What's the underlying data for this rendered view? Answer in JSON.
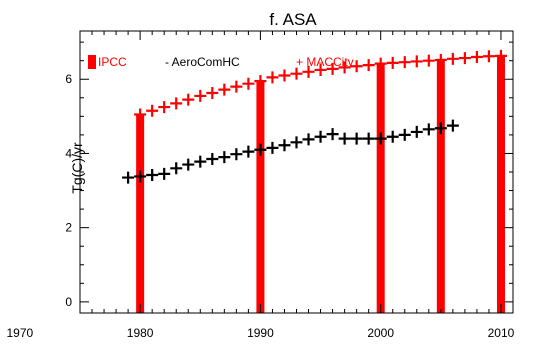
{
  "chart_data": {
    "type": "bar",
    "title": "f. ASA",
    "xlabel": "",
    "ylabel": "Tg(C)/yr",
    "xlim": [
      1975,
      2011
    ],
    "ylim": [
      -0.3,
      7.3
    ],
    "xticks": [
      1970,
      1980,
      1990,
      2000,
      2010
    ],
    "xtick_labels": [
      "1970",
      "1980",
      "1990",
      "2000",
      "2010"
    ],
    "yticks": [
      0,
      2,
      4,
      6
    ],
    "ytick_labels": [
      "0",
      "2",
      "4",
      "6"
    ],
    "legend": [
      {
        "label": "IPCC",
        "symbol": "bar",
        "color": "#ff0000"
      },
      {
        "label": "- AeroComHC",
        "symbol": "none",
        "color": "#000000"
      },
      {
        "label": "+ MACCity",
        "symbol": "none",
        "color": "#ff0000"
      }
    ],
    "legend_position": "top-left",
    "bars": {
      "name": "IPCC",
      "color": "#ff0000",
      "x": [
        1980,
        1990,
        2000,
        2005,
        2010
      ],
      "values": [
        5.05,
        5.95,
        6.45,
        6.55,
        6.65
      ]
    },
    "series": [
      {
        "name": "MACCity",
        "marker": "+",
        "color": "#ff0000",
        "x": [
          1980,
          1981,
          1982,
          1983,
          1984,
          1985,
          1986,
          1987,
          1988,
          1989,
          1990,
          1991,
          1992,
          1993,
          1994,
          1995,
          1996,
          1997,
          1998,
          1999,
          2000,
          2001,
          2002,
          2003,
          2004,
          2005,
          2006,
          2007,
          2008,
          2009,
          2010
        ],
        "values": [
          5.05,
          5.15,
          5.25,
          5.35,
          5.45,
          5.55,
          5.63,
          5.72,
          5.8,
          5.88,
          5.95,
          6.05,
          6.1,
          6.15,
          6.2,
          6.25,
          6.28,
          6.32,
          6.35,
          6.38,
          6.42,
          6.44,
          6.46,
          6.48,
          6.5,
          6.52,
          6.55,
          6.57,
          6.6,
          6.62,
          6.63
        ]
      },
      {
        "name": "AeroComHC",
        "marker": "+",
        "color": "#000000",
        "x": [
          1979,
          1980,
          1981,
          1982,
          1983,
          1984,
          1985,
          1986,
          1987,
          1988,
          1989,
          1990,
          1991,
          1992,
          1993,
          1994,
          1995,
          1996,
          1997,
          1998,
          1999,
          2000,
          2001,
          2002,
          2003,
          2004,
          2005,
          2006
        ],
        "values": [
          3.35,
          3.38,
          3.42,
          3.45,
          3.6,
          3.7,
          3.78,
          3.85,
          3.9,
          3.98,
          4.05,
          4.1,
          4.15,
          4.22,
          4.3,
          4.38,
          4.45,
          4.52,
          4.4,
          4.4,
          4.4,
          4.4,
          4.45,
          4.5,
          4.58,
          4.65,
          4.68,
          4.75
        ]
      }
    ]
  }
}
